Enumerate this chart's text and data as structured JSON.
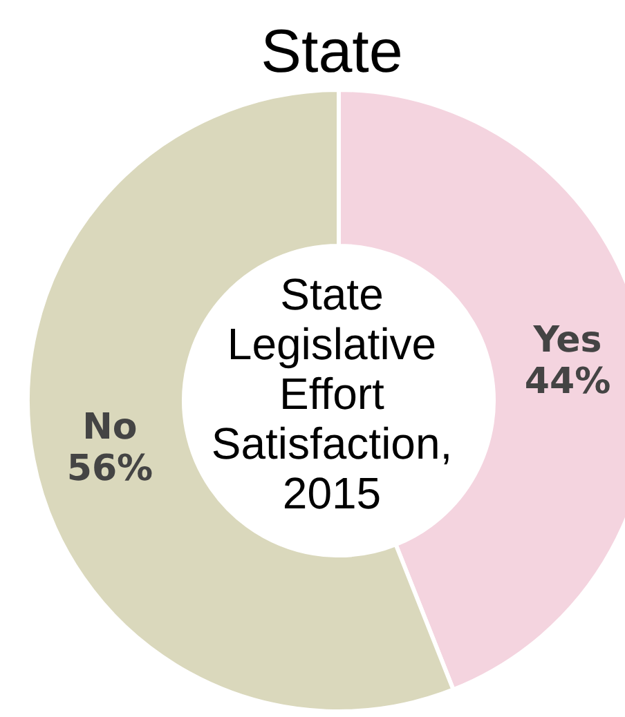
{
  "chart_data": {
    "type": "donut",
    "title": "State",
    "annotations": [
      "State Legislative Effort Satisfaction, 2015"
    ],
    "categories": [
      "Yes",
      "No"
    ],
    "values": [
      44,
      56
    ],
    "colors": [
      "#f4d4df",
      "#dad8bc"
    ],
    "value_labels": [
      "44%",
      "56%"
    ]
  }
}
